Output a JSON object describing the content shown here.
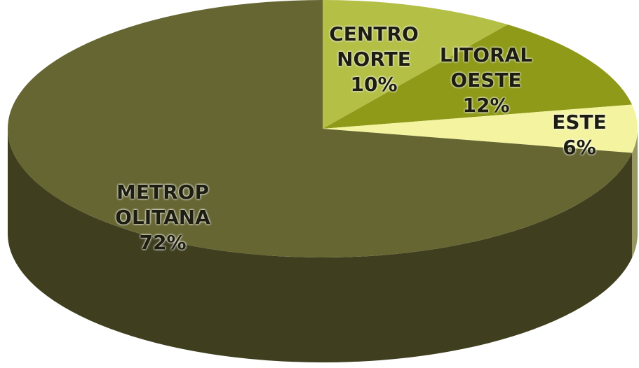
{
  "chart_data": {
    "type": "pie",
    "categories": [
      "CENTRO NORTE",
      "LITORAL OESTE",
      "ESTE",
      "METROPOLITANA"
    ],
    "values": [
      10,
      12,
      6,
      72
    ],
    "value_labels": [
      "10%",
      "12%",
      "6%",
      "72%"
    ],
    "colors": [
      "#b3bf45",
      "#8e9a18",
      "#f4f4a0",
      "#666633"
    ],
    "three_d": true
  }
}
